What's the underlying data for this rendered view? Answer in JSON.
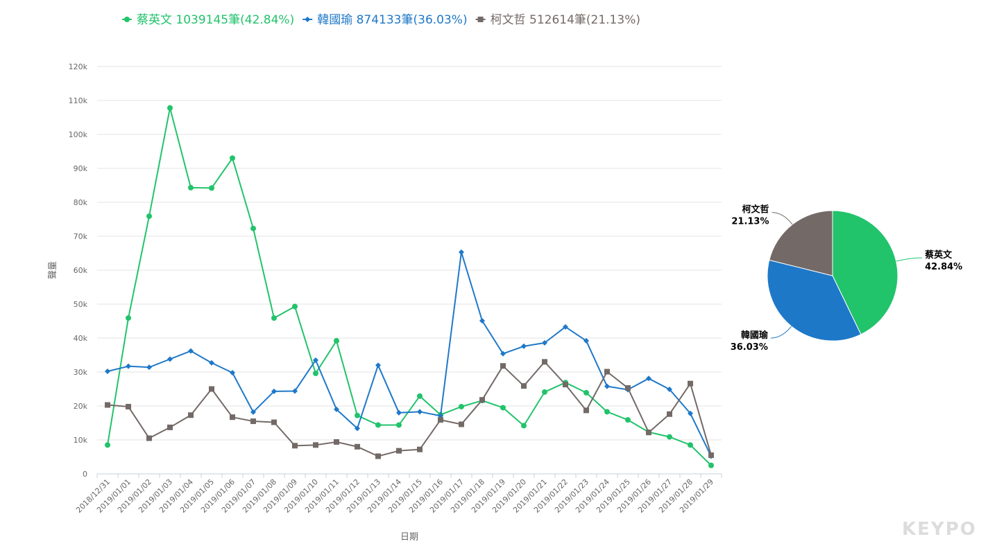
{
  "legend": [
    {
      "label": "蔡英文",
      "summary": "1039145筆(42.84%)",
      "color": "#21c36b",
      "marker": "circle"
    },
    {
      "label": "韓國瑜",
      "summary": "874133筆(36.03%)",
      "color": "#1e78c8",
      "marker": "diamond"
    },
    {
      "label": "柯文哲",
      "summary": "512614筆(21.13%)",
      "color": "#736a67",
      "marker": "square"
    }
  ],
  "watermark": "KEYPO",
  "chart_data": [
    {
      "type": "line",
      "xlabel": "日期",
      "ylabel": "聲量",
      "ylim": [
        0,
        120000
      ],
      "yticks": [
        0,
        10000,
        20000,
        30000,
        40000,
        50000,
        60000,
        70000,
        80000,
        90000,
        100000,
        110000,
        120000
      ],
      "ytick_labels": [
        "0",
        "10k",
        "20k",
        "30k",
        "40k",
        "50k",
        "60k",
        "70k",
        "80k",
        "90k",
        "100k",
        "110k",
        "120k"
      ],
      "grid": true,
      "legend_position": "top",
      "categories": [
        "2018/12/31",
        "2019/01/01",
        "2019/01/02",
        "2019/01/03",
        "2019/01/04",
        "2019/01/05",
        "2019/01/06",
        "2019/01/07",
        "2019/01/08",
        "2019/01/09",
        "2019/01/10",
        "2019/01/11",
        "2019/01/12",
        "2019/01/13",
        "2019/01/14",
        "2019/01/15",
        "2019/01/16",
        "2019/01/17",
        "2019/01/18",
        "2019/01/19",
        "2019/01/20",
        "2019/01/21",
        "2019/01/22",
        "2019/01/23",
        "2019/01/24",
        "2019/01/25",
        "2019/01/26",
        "2019/01/27",
        "2019/01/28",
        "2019/01/29"
      ],
      "series": [
        {
          "name": "蔡英文",
          "color": "#21c36b",
          "marker": "circle",
          "values": [
            8500,
            45900,
            75900,
            107800,
            84300,
            84200,
            93000,
            72300,
            45900,
            49300,
            29600,
            39200,
            17200,
            14400,
            14400,
            22900,
            17400,
            19800,
            21600,
            19500,
            14200,
            24100,
            26900,
            23900,
            18300,
            15900,
            12300,
            10900,
            8500,
            2500
          ]
        },
        {
          "name": "韓國瑜",
          "color": "#1e78c8",
          "marker": "diamond",
          "values": [
            30200,
            31700,
            31400,
            33800,
            36200,
            32700,
            29800,
            18200,
            24300,
            24400,
            33500,
            19000,
            13400,
            32000,
            18000,
            18300,
            17100,
            65300,
            45100,
            35400,
            37600,
            38600,
            43300,
            39200,
            25800,
            24800,
            28100,
            24900,
            17800,
            5200
          ]
        },
        {
          "name": "柯文哲",
          "color": "#736a67",
          "marker": "square",
          "values": [
            20300,
            19800,
            10500,
            13700,
            17300,
            25000,
            16700,
            15500,
            15200,
            8300,
            8500,
            9400,
            8000,
            5200,
            6800,
            7200,
            15900,
            14600,
            21800,
            31800,
            25900,
            33000,
            26300,
            18700,
            30100,
            25300,
            12200,
            17600,
            26600,
            5500
          ]
        }
      ]
    },
    {
      "type": "pie",
      "slices": [
        {
          "label": "蔡英文",
          "percent_label": "42.84%",
          "value": 42.84,
          "color": "#21c36b"
        },
        {
          "label": "韓國瑜",
          "percent_label": "36.03%",
          "value": 36.03,
          "color": "#1e78c8"
        },
        {
          "label": "柯文哲",
          "percent_label": "21.13%",
          "value": 21.13,
          "color": "#736a67"
        }
      ]
    }
  ]
}
